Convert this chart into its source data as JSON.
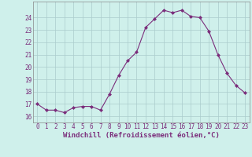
{
  "x": [
    0,
    1,
    2,
    3,
    4,
    5,
    6,
    7,
    8,
    9,
    10,
    11,
    12,
    13,
    14,
    15,
    16,
    17,
    18,
    19,
    20,
    21,
    22,
    23
  ],
  "y": [
    17.0,
    16.5,
    16.5,
    16.3,
    16.7,
    16.8,
    16.8,
    16.5,
    17.8,
    19.3,
    20.5,
    21.2,
    23.2,
    23.9,
    24.6,
    24.4,
    24.6,
    24.1,
    24.0,
    22.9,
    21.0,
    19.5,
    18.5,
    17.9
  ],
  "line_color": "#7b2d7b",
  "marker": "D",
  "marker_size": 2,
  "bg_color": "#cff0eb",
  "grid_color": "#aacccc",
  "xlabel": "Windchill (Refroidissement éolien,°C)",
  "xlabel_color": "#7b2d7b",
  "ylabel_ticks": [
    16,
    17,
    18,
    19,
    20,
    21,
    22,
    23,
    24
  ],
  "xlim": [
    -0.5,
    23.5
  ],
  "ylim": [
    15.5,
    25.3
  ],
  "xtick_labels": [
    "0",
    "1",
    "2",
    "3",
    "4",
    "5",
    "6",
    "7",
    "8",
    "9",
    "10",
    "11",
    "12",
    "13",
    "14",
    "15",
    "16",
    "17",
    "18",
    "19",
    "20",
    "21",
    "22",
    "23"
  ],
  "tick_color": "#7b2d7b",
  "tick_fontsize": 5.5,
  "xlabel_fontsize": 6.5
}
